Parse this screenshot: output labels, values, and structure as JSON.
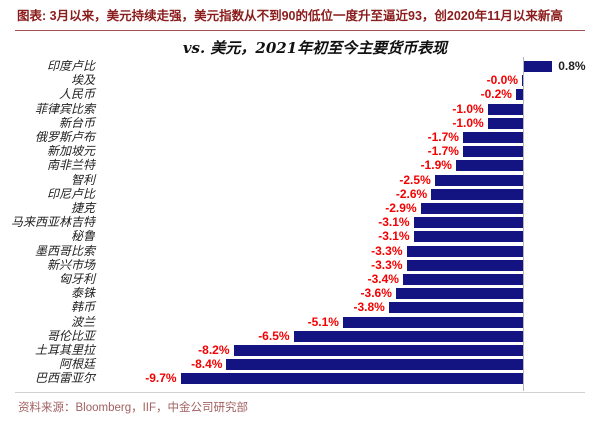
{
  "header": {
    "figure_label": "图表: 3月以来，美元持续走强，美元指数从不到90的低位一度升至逼近93，创2020年11月以来新高"
  },
  "chart_data": {
    "type": "bar",
    "orientation": "horizontal",
    "title": "vs. 美元，2021年初至今主要货币表现",
    "unit": "%",
    "xlim": [
      -10.5,
      1.5
    ],
    "grid": false,
    "legend": "none",
    "categories": [
      "印度卢比",
      "埃及",
      "人民币",
      "菲律宾比索",
      "新台币",
      "俄罗斯卢布",
      "新加坡元",
      "南非兰特",
      "智利",
      "印尼卢比",
      "捷克",
      "马来西亚林吉特",
      "秘鲁",
      "墨西哥比索",
      "新兴市场",
      "匈牙利",
      "泰铢",
      "韩币",
      "波兰",
      "哥伦比亚",
      "土耳其里拉",
      "阿根廷",
      "巴西雷亚尔"
    ],
    "values": [
      0.8,
      -0.0,
      -0.2,
      -1.0,
      -1.0,
      -1.7,
      -1.7,
      -1.9,
      -2.5,
      -2.6,
      -2.9,
      -3.1,
      -3.1,
      -3.3,
      -3.3,
      -3.4,
      -3.6,
      -3.8,
      -5.1,
      -6.5,
      -8.2,
      -8.4,
      -9.7
    ],
    "value_labels": [
      "0.8%",
      "-0.0%",
      "-0.2%",
      "-1.0%",
      "-1.0%",
      "-1.7%",
      "-1.7%",
      "-1.9%",
      "-2.5%",
      "-2.6%",
      "-2.9%",
      "-3.1%",
      "-3.1%",
      "-3.3%",
      "-3.3%",
      "-3.4%",
      "-3.6%",
      "-3.8%",
      "-5.1%",
      "-6.5%",
      "-8.2%",
      "-8.4%",
      "-9.7%"
    ],
    "colors": {
      "bar": "#131382",
      "negative_value_label": "#f40000",
      "positive_value_label": "#202020",
      "axis_line": "#b5b5b5"
    }
  },
  "footer": {
    "source": "资料来源：Bloomberg，IIF，中金公司研究部"
  }
}
